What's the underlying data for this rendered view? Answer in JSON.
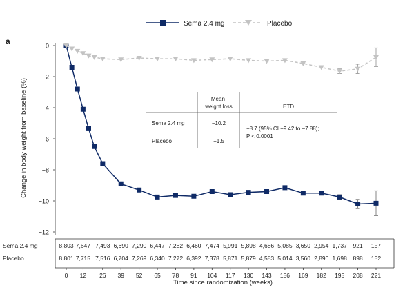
{
  "panel_label": "a",
  "chart_data": {
    "type": "line",
    "xlabel": "Time since randomization (weeks)",
    "ylabel": "Change in body weight from baseline (%)",
    "ylim": [
      -12,
      0
    ],
    "yticks": [
      0,
      -2,
      -4,
      -6,
      -8,
      -10,
      -12
    ],
    "xticks": [
      0,
      12,
      26,
      39,
      52,
      65,
      78,
      91,
      104,
      117,
      130,
      143,
      156,
      169,
      182,
      195,
      208,
      221
    ],
    "legend_position": "top",
    "series": [
      {
        "name": "Sema 2.4 mg",
        "color": "#0f2a66",
        "marker": "square",
        "line": "solid",
        "x": [
          0,
          4,
          8,
          12,
          16,
          20,
          26,
          39,
          52,
          65,
          78,
          91,
          104,
          117,
          130,
          143,
          156,
          169,
          182,
          195,
          208,
          221
        ],
        "y": [
          0,
          -1.4,
          -2.8,
          -4.1,
          -5.35,
          -6.5,
          -7.6,
          -8.9,
          -9.3,
          -9.75,
          -9.65,
          -9.7,
          -9.4,
          -9.6,
          -9.45,
          -9.4,
          -9.15,
          -9.5,
          -9.5,
          -9.75,
          -10.2,
          -10.15
        ],
        "err": [
          0,
          0.05,
          0.05,
          0.05,
          0.05,
          0.05,
          0.05,
          0.05,
          0.05,
          0.05,
          0.05,
          0.05,
          0.05,
          0.05,
          0.05,
          0.05,
          0.05,
          0.05,
          0.05,
          0.15,
          0.3,
          0.8
        ]
      },
      {
        "name": "Placebo",
        "color": "#c3c3c3",
        "marker": "triangle-down",
        "line": "dashed",
        "x": [
          0,
          4,
          8,
          12,
          16,
          20,
          26,
          39,
          52,
          65,
          78,
          91,
          104,
          117,
          130,
          143,
          156,
          169,
          182,
          195,
          208,
          221
        ],
        "y": [
          0,
          -0.2,
          -0.35,
          -0.5,
          -0.65,
          -0.75,
          -0.85,
          -0.9,
          -0.8,
          -0.85,
          -0.85,
          -0.95,
          -0.9,
          -0.85,
          -0.95,
          -1.0,
          -0.95,
          -1.15,
          -1.4,
          -1.65,
          -1.5,
          -0.75
        ],
        "err": [
          0,
          0.05,
          0.05,
          0.05,
          0.05,
          0.05,
          0.05,
          0.05,
          0.05,
          0.05,
          0.05,
          0.05,
          0.05,
          0.05,
          0.05,
          0.05,
          0.05,
          0.05,
          0.05,
          0.15,
          0.3,
          0.6
        ]
      }
    ],
    "inset_table": {
      "col_headers": [
        "Mean\nweight loss",
        "ETD"
      ],
      "rows": [
        {
          "label": "Sema 2.4 mg",
          "mean": "−10.2"
        },
        {
          "label": "Placebo",
          "mean": "−1.5"
        }
      ],
      "etd": [
        "−8.7 (95% CI −9.42 to −7.88);",
        "P < 0.0001"
      ]
    },
    "at_risk": {
      "rows": [
        {
          "label": "Sema 2.4 mg",
          "values": [
            "8,803",
            "7,647",
            "7,493",
            "6,690",
            "7,290",
            "6,447",
            "7,282",
            "6,460",
            "7,474",
            "5,991",
            "5,898",
            "4,686",
            "5,085",
            "3,650",
            "2,954",
            "1,737",
            "921",
            "157"
          ]
        },
        {
          "label": "Placebo",
          "values": [
            "8,801",
            "7,715",
            "7,516",
            "6,704",
            "7,269",
            "6,340",
            "7,272",
            "6,392",
            "7,378",
            "5,871",
            "5,879",
            "4,583",
            "5,014",
            "3,560",
            "2,890",
            "1,698",
            "898",
            "152"
          ]
        }
      ]
    }
  }
}
